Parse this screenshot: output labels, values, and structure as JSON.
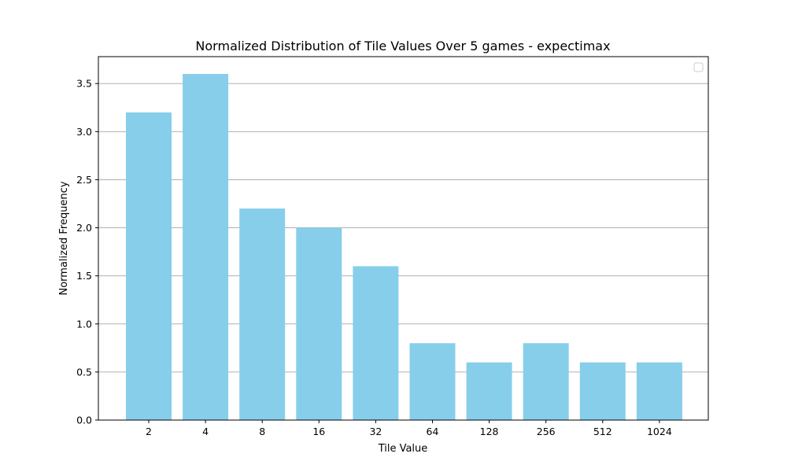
{
  "chart_data": {
    "type": "bar",
    "title": "Normalized Distribution of Tile Values Over 5 games - expectimax",
    "xlabel": "Tile Value",
    "ylabel": "Normalized Frequency",
    "categories": [
      "2",
      "4",
      "8",
      "16",
      "32",
      "64",
      "128",
      "256",
      "512",
      "1024"
    ],
    "values": [
      3.2,
      3.6,
      2.2,
      2.0,
      1.6,
      0.8,
      0.6,
      0.8,
      0.6,
      0.6
    ],
    "ylim": [
      0,
      3.78
    ],
    "yticks": [
      0.0,
      0.5,
      1.0,
      1.5,
      2.0,
      2.5,
      3.0,
      3.5
    ],
    "ytick_labels": [
      "0.0",
      "0.5",
      "1.0",
      "1.5",
      "2.0",
      "2.5",
      "3.0",
      "3.5"
    ],
    "grid": "y",
    "legend": {
      "placement": "top-right",
      "entries": []
    },
    "colors": {
      "bar": "#87ceeb",
      "grid": "#b0b0b0",
      "axis": "#000000"
    }
  }
}
